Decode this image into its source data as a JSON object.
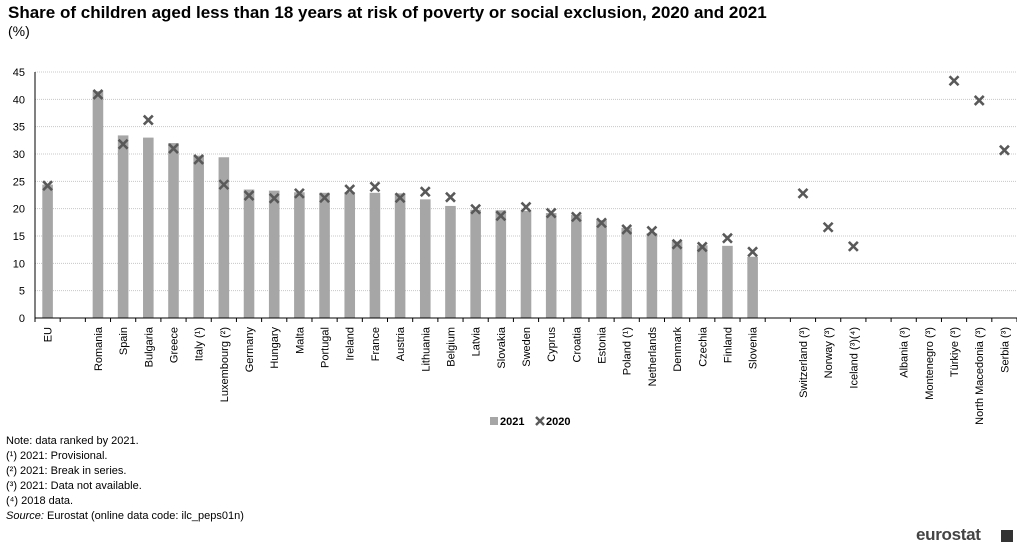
{
  "title": "Share of children aged less than 18 years at risk of poverty or social exclusion, 2020 and 2021",
  "subtitle": "(%)",
  "notes": [
    "Note: data ranked by 2021.",
    "(¹) 2021: Provisional.",
    "(²) 2021: Break in series.",
    "(³) 2021: Data not available.",
    "(⁴) 2018 data."
  ],
  "source_label": "Source:",
  "source_text": " Eurostat (online data code: ilc_peps01n)",
  "logo_text": "eurostat",
  "colors": {
    "bar_2021": "#a6a6a6",
    "marker_2020": "#595959",
    "grid": "#c8c8c8",
    "axis": "#000000"
  },
  "chart_data": {
    "type": "bar",
    "ylim": [
      0,
      45
    ],
    "yticks": [
      0,
      5,
      10,
      15,
      20,
      25,
      30,
      35,
      40,
      45
    ],
    "grid": true,
    "legend_position": "bottom",
    "categories": [
      "EU",
      "",
      "Romania",
      "Spain",
      "Bulgaria",
      "Greece",
      "Italy (¹)",
      "Luxembourg (²)",
      "Germany",
      "Hungary",
      "Malta",
      "Portugal",
      "Ireland",
      "France",
      "Austria",
      "Lithuania",
      "Belgium",
      "Latvia",
      "Slovakia",
      "Sweden",
      "Cyprus",
      "Croatia",
      "Estonia",
      "Poland (¹)",
      "Netherlands",
      "Denmark",
      "Czechia",
      "Finland",
      "Slovenia",
      "",
      "Switzerland (³)",
      "Norway (³)",
      "Iceland (³)(⁴)",
      "",
      "Albania (³)",
      "Montenegro (³)",
      "Türkiye (³)",
      "North Macedonia (³)",
      "Serbia (³)"
    ],
    "series": [
      {
        "name": "2021",
        "type": "bar",
        "values": [
          24.4,
          null,
          41.5,
          33.4,
          33.0,
          32.0,
          29.7,
          29.4,
          23.5,
          23.3,
          23.0,
          22.9,
          23.0,
          22.9,
          22.8,
          21.7,
          20.5,
          19.8,
          19.7,
          19.6,
          19.2,
          18.9,
          17.9,
          16.5,
          15.5,
          14.0,
          13.3,
          13.2,
          11.2,
          null,
          null,
          null,
          null,
          null,
          null,
          null,
          null,
          null,
          null
        ]
      },
      {
        "name": "2020",
        "type": "marker",
        "values": [
          24.2,
          null,
          40.9,
          31.8,
          36.2,
          31.0,
          29.0,
          24.4,
          22.4,
          21.9,
          22.8,
          22.0,
          23.5,
          24.0,
          22.0,
          23.1,
          22.1,
          19.9,
          18.7,
          20.3,
          19.2,
          18.5,
          17.4,
          16.2,
          15.9,
          13.5,
          13.0,
          14.6,
          12.1,
          null,
          22.8,
          16.6,
          13.1,
          null,
          null,
          null,
          43.4,
          39.8,
          30.7
        ]
      }
    ]
  }
}
